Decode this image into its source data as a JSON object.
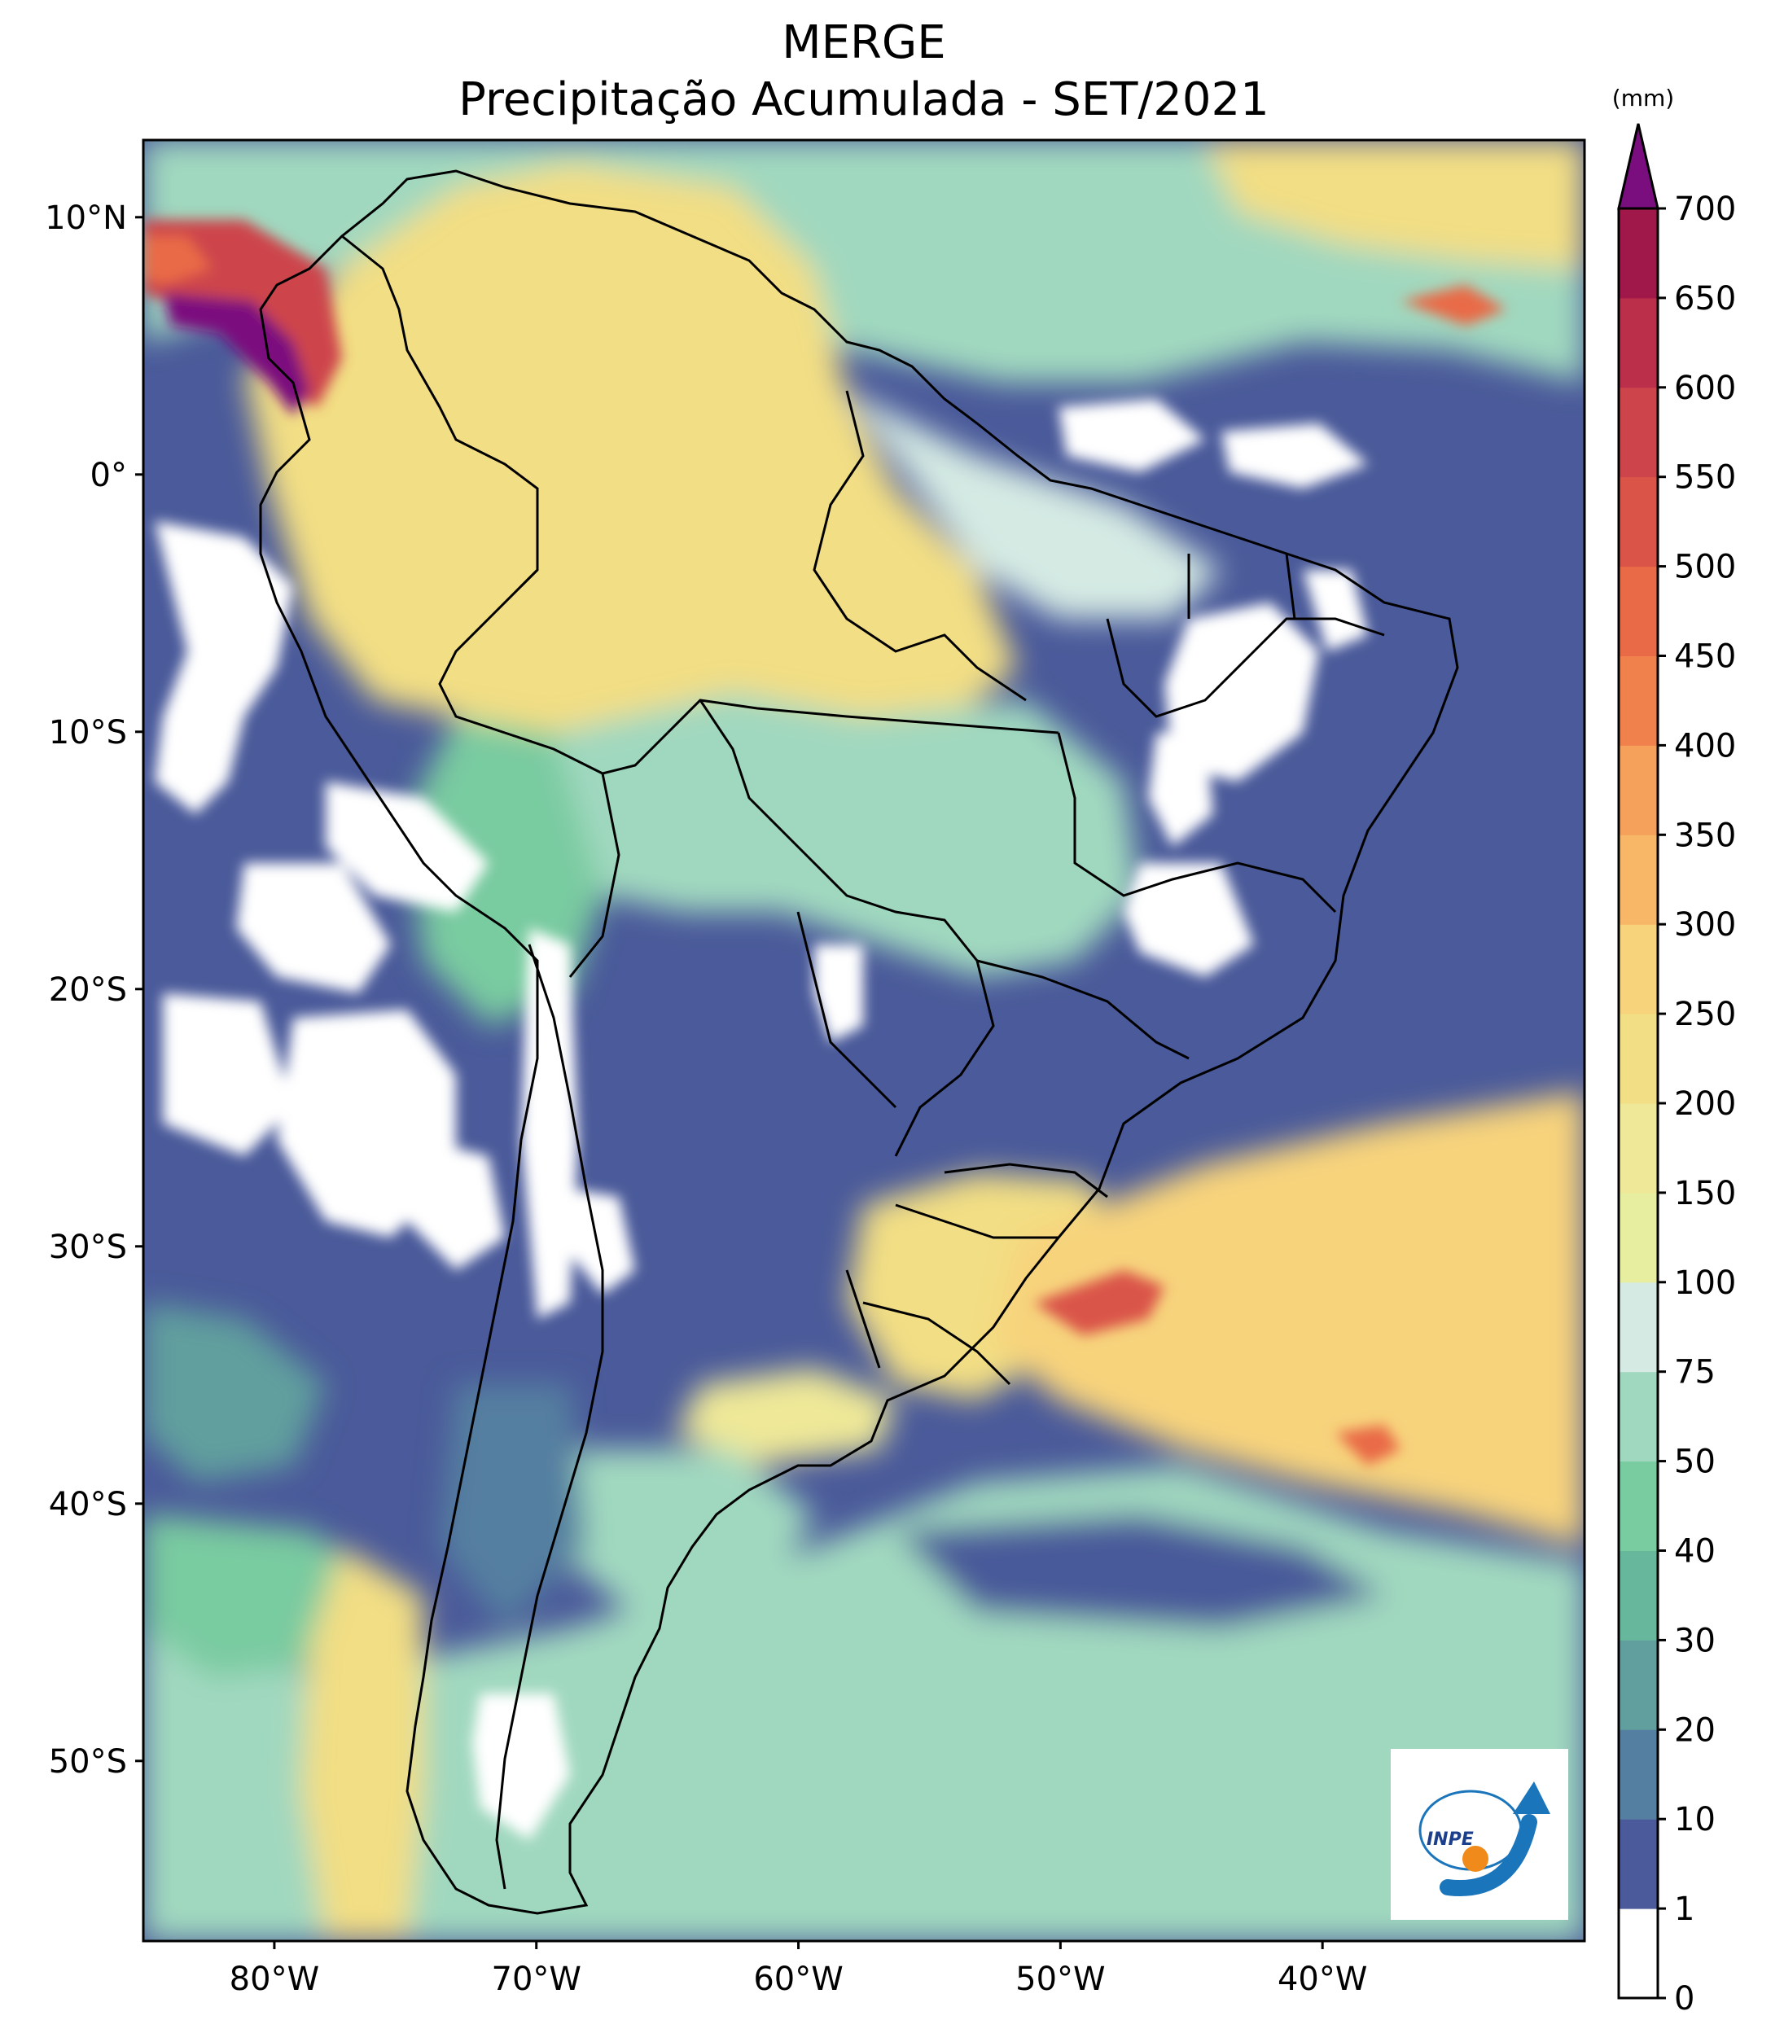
{
  "title": {
    "line1": "MERGE",
    "line2": "Precipitação Acumulada - SET/2021"
  },
  "map": {
    "projection": "PlateCarree",
    "lon_range": [
      -85,
      -30
    ],
    "lat_range": [
      -57,
      13
    ],
    "lat_ticks": [
      {
        "value": 10,
        "label": "10°N"
      },
      {
        "value": 0,
        "label": "0°"
      },
      {
        "value": -10,
        "label": "10°S"
      },
      {
        "value": -20,
        "label": "20°S"
      },
      {
        "value": -30,
        "label": "30°S"
      },
      {
        "value": -40,
        "label": "40°S"
      },
      {
        "value": -50,
        "label": "50°S"
      }
    ],
    "lon_ticks": [
      {
        "value": -80,
        "label": "80°W"
      },
      {
        "value": -70,
        "label": "70°W"
      },
      {
        "value": -60,
        "label": "60°W"
      },
      {
        "value": -50,
        "label": "50°W"
      },
      {
        "value": -40,
        "label": "40°W"
      }
    ],
    "field": "accumulated precipitation (mm), contour-filled"
  },
  "colorbar": {
    "unit": "(mm)",
    "extend": "max",
    "extend_color": "#7b0e7e",
    "levels": [
      0,
      1,
      10,
      20,
      30,
      40,
      50,
      75,
      100,
      150,
      200,
      250,
      300,
      350,
      400,
      450,
      500,
      550,
      600,
      650,
      700
    ],
    "colors": [
      "#ffffff",
      "#4a5a9a",
      "#557fa0",
      "#619f9e",
      "#67b79c",
      "#79cba0",
      "#a0d8bf",
      "#d4eae3",
      "#e8eea0",
      "#eee898",
      "#f2de84",
      "#f7d37b",
      "#f7b766",
      "#f5a15b",
      "#f0814c",
      "#e96a46",
      "#da5548",
      "#cd454b",
      "#bb2f4b",
      "#a0184a"
    ]
  },
  "logo": {
    "text": "INPE"
  },
  "colors": {
    "ocean_dry": "#4a5a9a",
    "wet_tropics": "#f2de84",
    "border_line": "#000000"
  }
}
